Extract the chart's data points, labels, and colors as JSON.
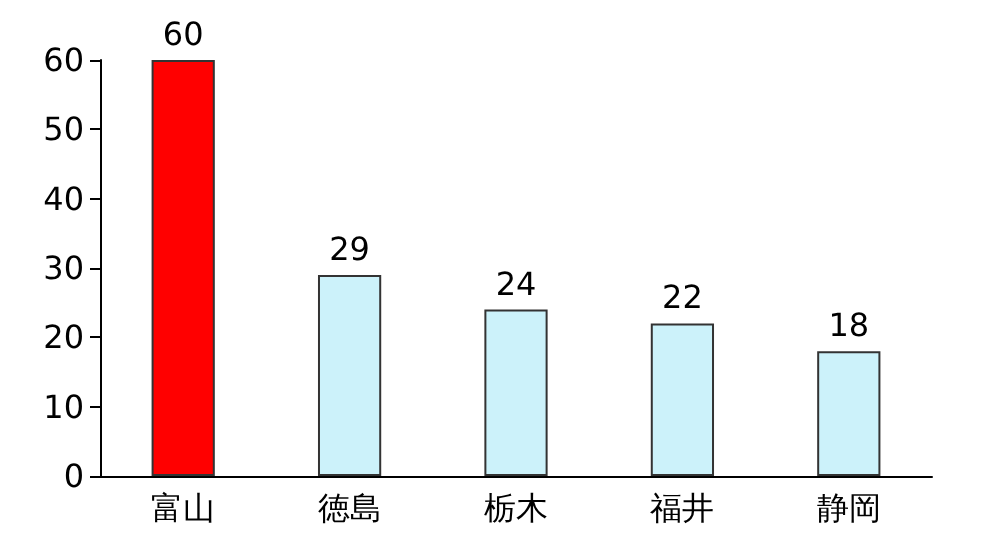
{
  "chart_data": {
    "type": "bar",
    "categories": [
      "富山",
      "徳島",
      "栃木",
      "福井",
      "静岡"
    ],
    "values": [
      60,
      29,
      24,
      22,
      18
    ],
    "colors": [
      "#ff0000",
      "#ccf2fa",
      "#ccf2fa",
      "#ccf2fa",
      "#ccf2fa"
    ],
    "ylim": [
      0,
      60
    ],
    "yticks": [
      0,
      10,
      20,
      30,
      40,
      50,
      60
    ],
    "grid": false,
    "data_labels": true
  }
}
